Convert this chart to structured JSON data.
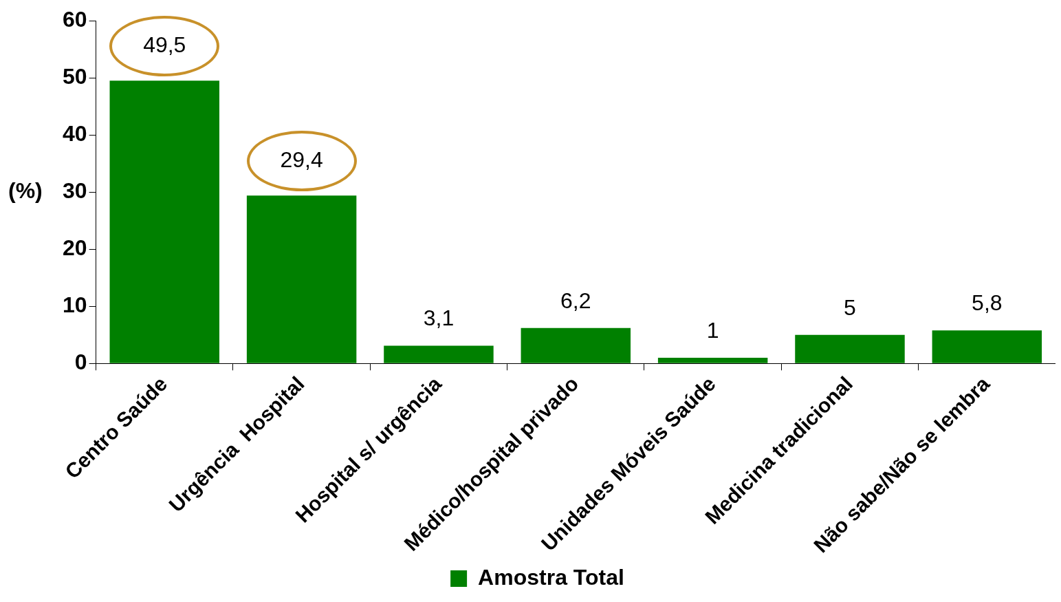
{
  "chart_data": {
    "type": "bar",
    "ylabel": "(%)",
    "categories": [
      "Centro Saúde",
      "Urgência  Hospital",
      "Hospital s/ urgência",
      "Médico/hospital privado",
      "Unidades Móveis Saúde",
      "Medicina tradicional",
      "Não sabe/Não se lembra"
    ],
    "series": [
      {
        "name": "Amostra Total",
        "color": "#008000",
        "values": [
          49.5,
          29.4,
          3.1,
          6.2,
          1,
          5,
          5.8
        ],
        "value_labels": [
          "49,5",
          "29,4",
          "3,1",
          "6,2",
          "1",
          "5",
          "5,8"
        ]
      }
    ],
    "ylim": [
      0,
      60
    ],
    "yticks": [
      0,
      10,
      20,
      30,
      40,
      50,
      60
    ],
    "grid": false,
    "legend": "bottom"
  }
}
